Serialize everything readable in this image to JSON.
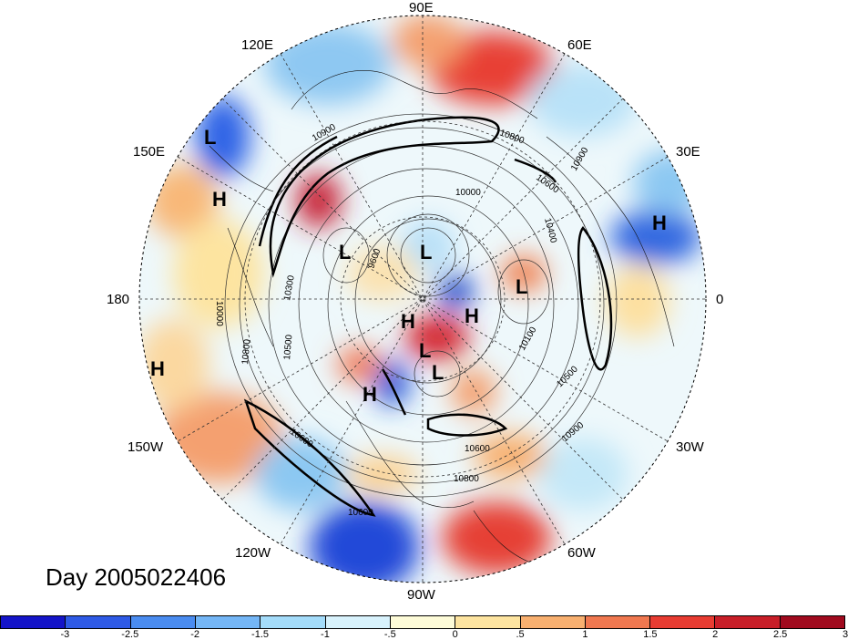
{
  "title": "Day 2005022406",
  "longitude_labels": [
    "90E",
    "60E",
    "120E",
    "30E",
    "150E",
    "0",
    "180",
    "30W",
    "150W",
    "60W",
    "120W",
    "90W"
  ],
  "pressure_systems": [
    "L",
    "H",
    "H",
    "L",
    "L",
    "L",
    "H",
    "H",
    "L",
    "H",
    "H",
    "L"
  ],
  "contour_labels": [
    "10900",
    "10800",
    "10600",
    "10900",
    "10000",
    "10400",
    "9600",
    "10300",
    "10500",
    "10800",
    "10100",
    "10500",
    "10900",
    "10600",
    "10800",
    "10600",
    "10600",
    "10000"
  ],
  "colorbar": {
    "colors": [
      "#1414c8",
      "#2e5ae6",
      "#4a8cf0",
      "#74b6f6",
      "#a4dcfa",
      "#d8f2fc",
      "#fdfbd8",
      "#fde4a0",
      "#f8b070",
      "#f07850",
      "#e83c32",
      "#c81e28",
      "#a00a1e"
    ],
    "ticks": [
      "-3",
      "-2.5",
      "-2",
      "-1.5",
      "-1",
      "-.5",
      "0",
      ".5",
      "1",
      "1.5",
      "2",
      "2.5",
      "3"
    ]
  }
}
